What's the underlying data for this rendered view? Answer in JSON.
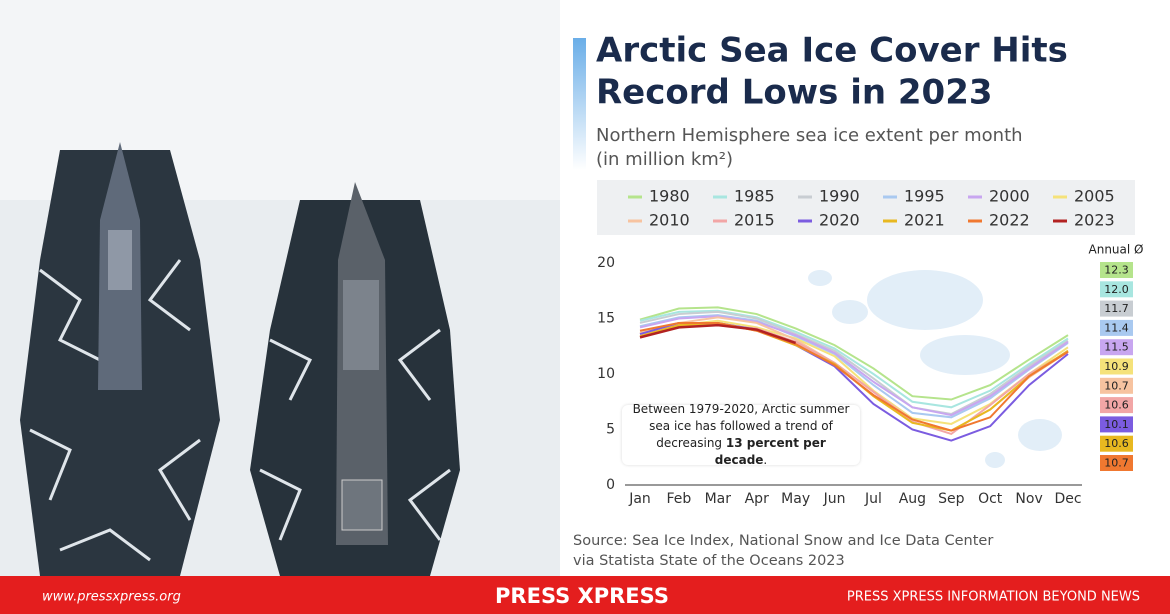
{
  "chart_data": {
    "type": "line",
    "title": [
      "Arctic Sea Ice Cover Hits",
      "Record Lows in 2023"
    ],
    "subtitle": [
      "Northern Hemisphere sea ice extent per month",
      "(in million km²)"
    ],
    "categories": [
      "Jan",
      "Feb",
      "Mar",
      "Apr",
      "May",
      "Jun",
      "Jul",
      "Aug",
      "Sep",
      "Oct",
      "Nov",
      "Dec"
    ],
    "ylim": [
      0,
      20
    ],
    "yticks": [
      0,
      5,
      10,
      15,
      20
    ],
    "grid": false,
    "annual_header": "Annual Ø",
    "series": [
      {
        "name": "1980",
        "color": "#b5e48c",
        "values": [
          14.9,
          15.9,
          16.0,
          15.4,
          14.1,
          12.6,
          10.5,
          8.0,
          7.7,
          9.0,
          11.3,
          13.5
        ],
        "annual_average": 12.3
      },
      {
        "name": "1985",
        "color": "#a8e6e0",
        "values": [
          14.8,
          15.6,
          15.7,
          15.1,
          13.8,
          12.3,
          10.0,
          7.5,
          7.0,
          8.5,
          10.9,
          13.2
        ],
        "annual_average": 12.0
      },
      {
        "name": "1990",
        "color": "#c8cdd2",
        "values": [
          14.6,
          15.4,
          15.6,
          15.0,
          13.6,
          12.1,
          9.6,
          7.0,
          6.4,
          8.2,
          10.7,
          13.0
        ],
        "annual_average": 11.7
      },
      {
        "name": "1995",
        "color": "#a9c9f0",
        "values": [
          14.3,
          15.1,
          15.3,
          14.8,
          13.4,
          11.8,
          9.0,
          6.5,
          6.1,
          7.8,
          10.4,
          12.8
        ],
        "annual_average": 11.4
      },
      {
        "name": "2000",
        "color": "#c8a6f0",
        "values": [
          14.2,
          15.0,
          15.2,
          14.7,
          13.5,
          11.9,
          9.3,
          7.0,
          6.3,
          8.0,
          10.5,
          12.9
        ],
        "annual_average": 11.5
      },
      {
        "name": "2005",
        "color": "#f5e27a",
        "values": [
          13.7,
          14.4,
          14.8,
          14.2,
          13.2,
          11.6,
          8.5,
          6.0,
          5.5,
          7.3,
          10.0,
          12.4
        ],
        "annual_average": 10.9
      },
      {
        "name": "2010",
        "color": "#f7c3a0",
        "values": [
          13.7,
          14.6,
          15.1,
          14.6,
          13.1,
          11.0,
          8.4,
          5.9,
          4.9,
          6.8,
          9.7,
          12.0
        ],
        "annual_average": 10.7
      },
      {
        "name": "2015",
        "color": "#f2a6a6",
        "values": [
          13.6,
          14.4,
          14.4,
          14.1,
          12.9,
          11.0,
          8.4,
          5.7,
          4.6,
          7.2,
          10.0,
          12.0
        ],
        "annual_average": 10.6
      },
      {
        "name": "2020",
        "color": "#7b5ce0",
        "values": [
          13.6,
          14.6,
          14.6,
          14.0,
          12.6,
          10.7,
          7.3,
          5.0,
          4.0,
          5.3,
          9.0,
          11.8
        ],
        "annual_average": 10.1
      },
      {
        "name": "2021",
        "color": "#e8b820",
        "values": [
          13.4,
          14.4,
          14.6,
          13.9,
          12.6,
          10.9,
          8.0,
          5.6,
          4.9,
          6.8,
          9.8,
          12.1
        ],
        "annual_average": 10.6
      },
      {
        "name": "2022",
        "color": "#f07830",
        "values": [
          13.9,
          14.6,
          14.6,
          13.9,
          12.7,
          10.8,
          8.1,
          5.9,
          4.9,
          6.1,
          9.8,
          12.0
        ],
        "annual_average": 10.7
      },
      {
        "name": "2023",
        "color": "#b22222",
        "values": [
          13.3,
          14.2,
          14.4,
          14.0,
          12.8,
          null,
          null,
          null,
          null,
          null,
          null,
          null
        ]
      }
    ],
    "annual_labels": [
      "12.3",
      "12.0",
      "11.7",
      "11.4",
      "11.5",
      "10.9",
      "10.7",
      "10.6",
      "10.1",
      "10.6",
      "10.7"
    ],
    "annotation": [
      "Between 1979-2020, Arctic summer sea ice has followed a trend of decreasing ",
      "13 percent per decade",
      "."
    ],
    "source": [
      "Source: Sea Ice Index, National Snow and Ice Data Center",
      "via Statista State of the Oceans 2023"
    ]
  },
  "footer": {
    "website": "www.pressxpress.org",
    "brand": "PRESS XPRESS",
    "tagline": "PRESS XPRESS INFORMATION BEYOND NEWS"
  }
}
